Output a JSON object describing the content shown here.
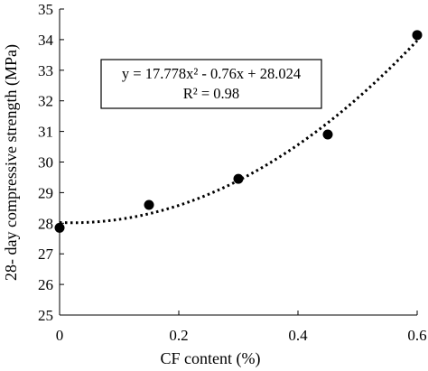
{
  "chart_data": {
    "type": "scatter",
    "title": "",
    "xlabel": "CF content (%)",
    "ylabel": "28- day compressive strength (MPa)",
    "xlim": [
      0,
      0.6
    ],
    "ylim": [
      25,
      35
    ],
    "x_ticks": [
      0,
      0.2,
      0.4,
      0.6
    ],
    "x_tick_labels": [
      "0",
      "0.2",
      "0.4",
      "0.6"
    ],
    "y_ticks": [
      25,
      26,
      27,
      28,
      29,
      30,
      31,
      32,
      33,
      34,
      35
    ],
    "y_tick_labels": [
      "25",
      "26",
      "27",
      "28",
      "29",
      "30",
      "31",
      "32",
      "33",
      "34",
      "35"
    ],
    "grid": false,
    "series": [
      {
        "x": [
          0,
          0.15,
          0.3,
          0.45,
          0.6
        ],
        "y": [
          27.85,
          28.6,
          29.45,
          30.9,
          34.15
        ],
        "color": "#000000",
        "marker": "circle"
      }
    ],
    "trendline": {
      "type": "polynomial",
      "coefficients": [
        17.778,
        -0.76,
        28.024
      ],
      "style": "dotted",
      "color": "#000000"
    },
    "annotation": {
      "equation": "y = 17.778x² - 0.76x + 28.024",
      "r2": "R² = 0.98"
    }
  }
}
